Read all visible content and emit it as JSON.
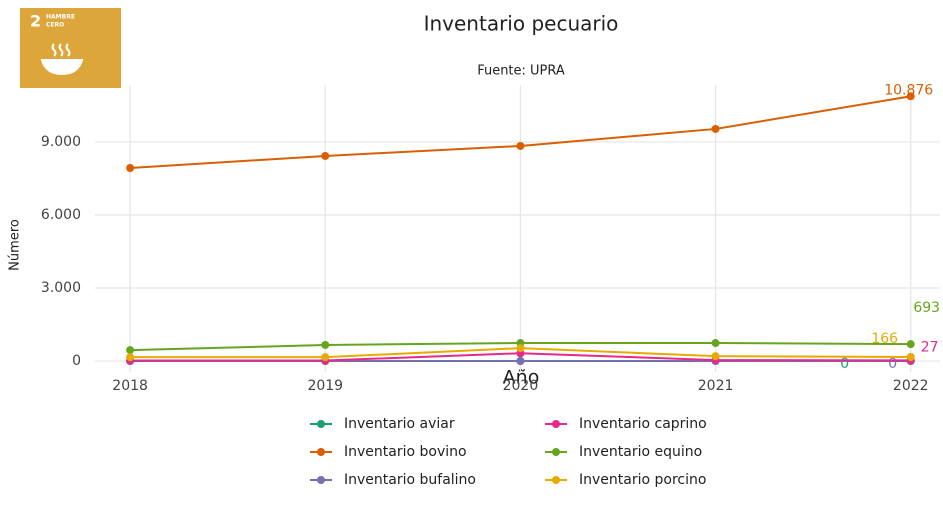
{
  "logo": {
    "number": "2",
    "lines": [
      "HAMBRE",
      "CERO"
    ]
  },
  "chart_data": {
    "type": "line",
    "title": "Inventario pecuario",
    "subtitle": "Fuente: UPRA",
    "x_label": "Año",
    "y_label": "Número",
    "x": [
      2018,
      2019,
      2020,
      2021,
      2022
    ],
    "xlim": [
      2017.82,
      2022.15
    ],
    "xticks": [
      2018,
      2019,
      2020,
      2021,
      2022
    ],
    "ylim": [
      -450,
      11340
    ],
    "yticks": [
      0,
      {
        "value": 3000,
        "label": "3.000"
      },
      {
        "value": 6000,
        "label": "6.000"
      },
      {
        "value": 9000,
        "label": "9.000"
      }
    ],
    "grid": true,
    "legend": "bottom",
    "series": [
      {
        "name": "Inventario aviar",
        "color": "#1b9e77",
        "values": [
          0,
          0,
          0,
          0,
          0
        ]
      },
      {
        "name": "Inventario bovino",
        "color": "#d95f02",
        "values": [
          7930,
          8425,
          8836,
          9535,
          10876
        ],
        "value_labels": [
          null,
          null,
          null,
          null,
          "10.876"
        ]
      },
      {
        "name": "Inventario bufalino",
        "color": "#7570b3",
        "values": [
          0,
          0,
          0,
          0,
          0
        ]
      },
      {
        "name": "Inventario caprino",
        "color": "#e7298a",
        "values": [
          20,
          20,
          320,
          40,
          27
        ]
      },
      {
        "name": "Inventario equino",
        "color": "#66a61e",
        "values": [
          450,
          660,
          740,
          740,
          693
        ]
      },
      {
        "name": "Inventario porcino",
        "color": "#e6ab02",
        "values": [
          160,
          160,
          530,
          200,
          166
        ]
      }
    ]
  }
}
